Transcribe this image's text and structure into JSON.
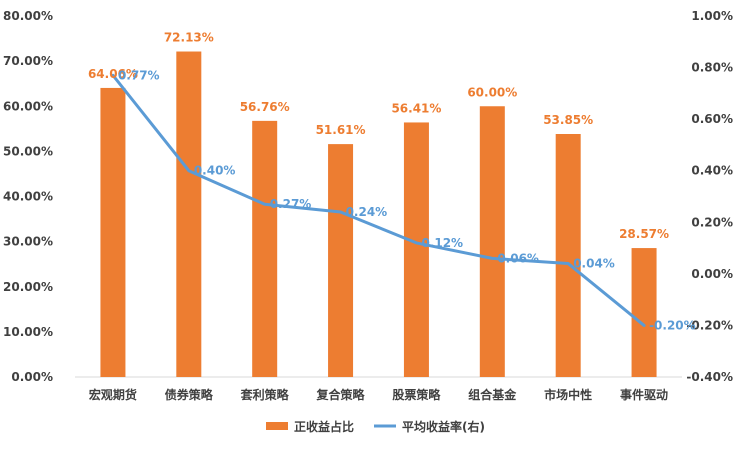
{
  "chart_data": {
    "type": "bar+line",
    "categories": [
      "宏观期货",
      "债券策略",
      "套利策略",
      "复合策略",
      "股票策略",
      "组合基金",
      "市场中性",
      "事件驱动"
    ],
    "series": [
      {
        "name": "正收益占比",
        "type": "bar",
        "axis": "left",
        "color": "#ED7D31",
        "label_color": "#ED7D31",
        "values": [
          64.06,
          72.13,
          56.76,
          51.61,
          56.41,
          60.0,
          53.85,
          28.57
        ],
        "labels": [
          "64.06%",
          "72.13%",
          "56.76%",
          "51.61%",
          "56.41%",
          "60.00%",
          "53.85%",
          "28.57%"
        ]
      },
      {
        "name": "平均收益率(右)",
        "type": "line",
        "axis": "right",
        "color": "#5B9BD5",
        "label_color": "#5B9BD5",
        "values": [
          0.77,
          0.4,
          0.27,
          0.24,
          0.12,
          0.06,
          0.04,
          -0.2
        ],
        "labels": [
          "0.77%",
          "0.40%",
          "0.27%",
          "0.24%",
          "0.12%",
          "0.06%",
          "0.04%",
          "-0.20%"
        ]
      }
    ],
    "left_axis": {
      "min": 0,
      "max": 80,
      "ticks": [
        "0.00%",
        "10.00%",
        "20.00%",
        "30.00%",
        "40.00%",
        "50.00%",
        "60.00%",
        "70.00%",
        "80.00%"
      ]
    },
    "right_axis": {
      "min": -0.4,
      "max": 1.0,
      "ticks": [
        "-0.40%",
        "-0.20%",
        "0.00%",
        "0.20%",
        "0.40%",
        "0.60%",
        "0.80%",
        "1.00%"
      ]
    },
    "legend": {
      "position": "bottom",
      "items": [
        "正收益占比",
        "平均收益率(右)"
      ]
    },
    "grid": false
  }
}
